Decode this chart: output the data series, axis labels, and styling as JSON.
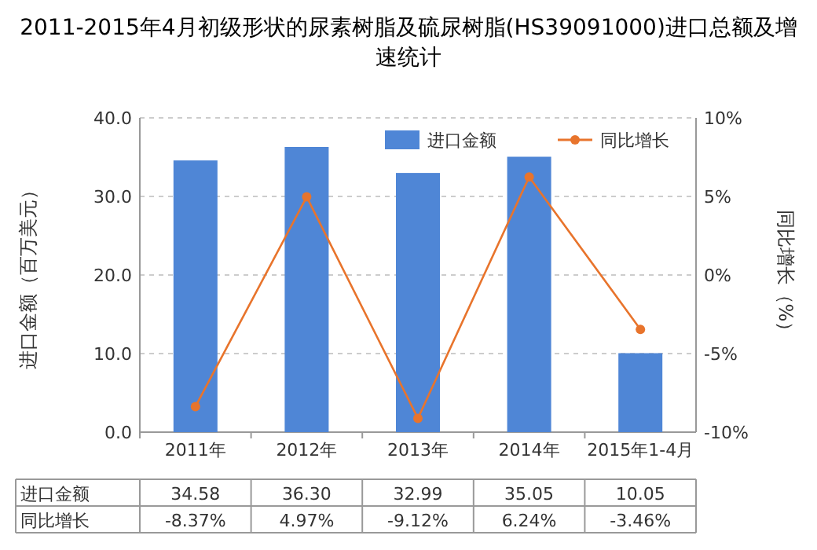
{
  "chart_data": {
    "type": "bar",
    "title": "2011-2015年4月初级形状的尿素树脂及硫尿树脂(HS39091000)进口总额及增速统计",
    "ylabel": "进口金额（百万美元）",
    "y2label": "同比增长（%）",
    "categories": [
      "2011年",
      "2012年",
      "2013年",
      "2014年",
      "2015年1-4月"
    ],
    "series": [
      {
        "name": "进口金额",
        "color": "#4f86d6",
        "values": [
          34.58,
          36.3,
          32.99,
          35.05,
          10.05
        ],
        "value_labels": [
          "34.58",
          "36.30",
          "32.99",
          "35.05",
          "10.05"
        ]
      },
      {
        "name": "同比增长",
        "type": "line",
        "axis": "y2",
        "color": "#e8742c",
        "marker": "circle",
        "values": [
          -8.37,
          4.97,
          -9.12,
          6.24,
          -3.46
        ],
        "value_labels": [
          "-8.37%",
          "4.97%",
          "-9.12%",
          "6.24%",
          "-3.46%"
        ]
      }
    ],
    "ylim": [
      0,
      40
    ],
    "yticks": [
      {
        "value": 0,
        "label": "0.0"
      },
      {
        "value": 10,
        "label": "10.0"
      },
      {
        "value": 20,
        "label": "20.0"
      },
      {
        "value": 30,
        "label": "30.0"
      },
      {
        "value": 40,
        "label": "40.0"
      }
    ],
    "y2lim": [
      -10,
      10
    ],
    "y2ticks": [
      {
        "value": -10,
        "label": "-10%"
      },
      {
        "value": -5,
        "label": "-5%"
      },
      {
        "value": 0,
        "label": "0%"
      },
      {
        "value": 5,
        "label": "5%"
      },
      {
        "value": 10,
        "label": "10%"
      }
    ],
    "grid": "y",
    "legend": "top"
  }
}
